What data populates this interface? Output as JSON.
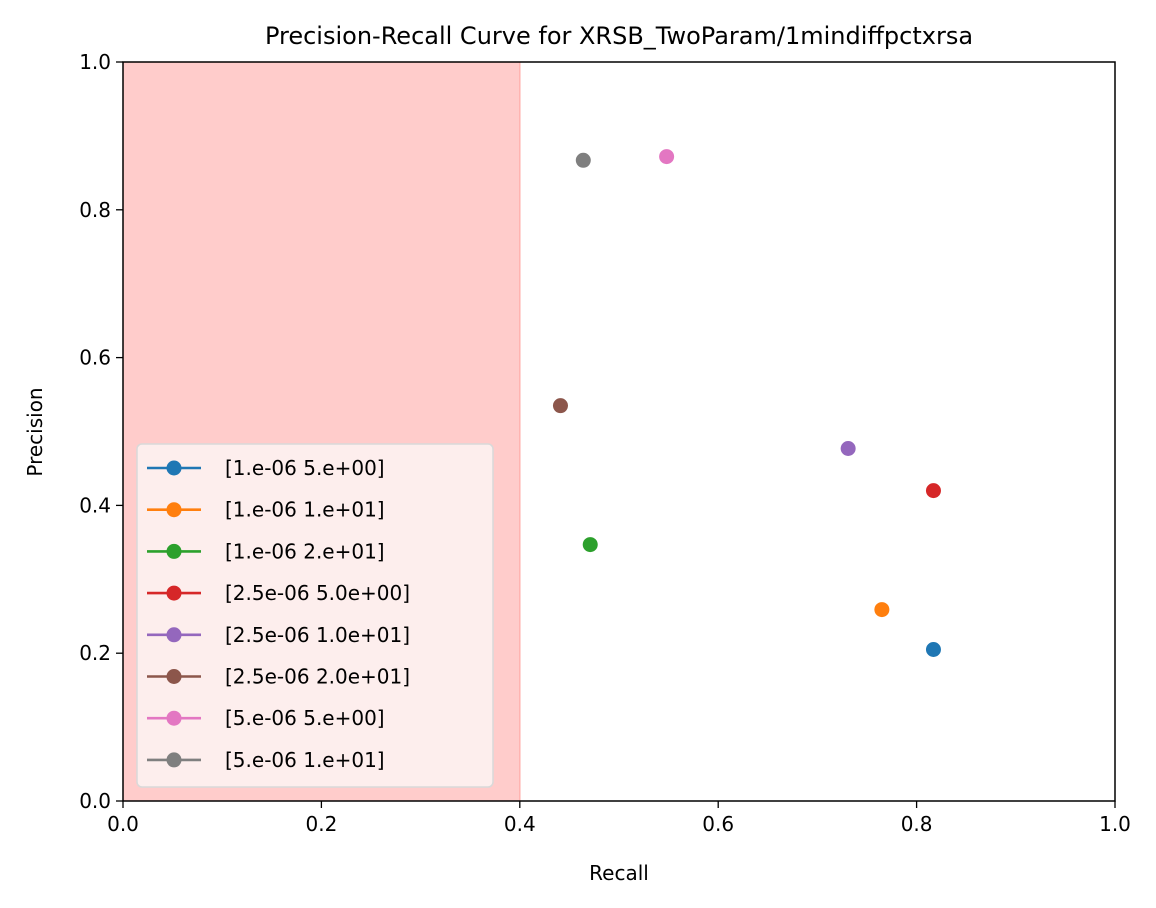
{
  "chart_data": {
    "type": "scatter",
    "title": "Precision-Recall Curve for XRSB_TwoParam/1mindiffpctxrsa",
    "xlabel": "Recall",
    "ylabel": "Precision",
    "xlim": [
      0.0,
      1.0
    ],
    "ylim": [
      0.0,
      1.0
    ],
    "xticks": [
      "0.0",
      "0.2",
      "0.4",
      "0.6",
      "0.8",
      "1.0"
    ],
    "yticks": [
      "0.0",
      "0.2",
      "0.4",
      "0.6",
      "0.8",
      "1.0"
    ],
    "grid": false,
    "legend_position": "lower-left",
    "shaded_region": {
      "x_from": 0.0,
      "x_to": 0.4,
      "color": "#ffcccb"
    },
    "series": [
      {
        "name": "[1.e-06 5.e+00]",
        "color": "#1f77b4",
        "x": 0.817,
        "y": 0.205
      },
      {
        "name": "[1.e-06 1.e+01]",
        "color": "#ff7f0e",
        "x": 0.765,
        "y": 0.259
      },
      {
        "name": "[1.e-06 2.e+01]",
        "color": "#2ca02c",
        "x": 0.471,
        "y": 0.347
      },
      {
        "name": "[2.5e-06 5.0e+00]",
        "color": "#d62728",
        "x": 0.817,
        "y": 0.42
      },
      {
        "name": "[2.5e-06 1.0e+01]",
        "color": "#9467bd",
        "x": 0.731,
        "y": 0.477
      },
      {
        "name": "[2.5e-06 2.0e+01]",
        "color": "#8c564b",
        "x": 0.441,
        "y": 0.535
      },
      {
        "name": "[5.e-06 5.e+00]",
        "color": "#e377c2",
        "x": 0.548,
        "y": 0.872
      },
      {
        "name": "[5.e-06 1.e+01]",
        "color": "#7f7f7f",
        "x": 0.464,
        "y": 0.867
      }
    ]
  }
}
